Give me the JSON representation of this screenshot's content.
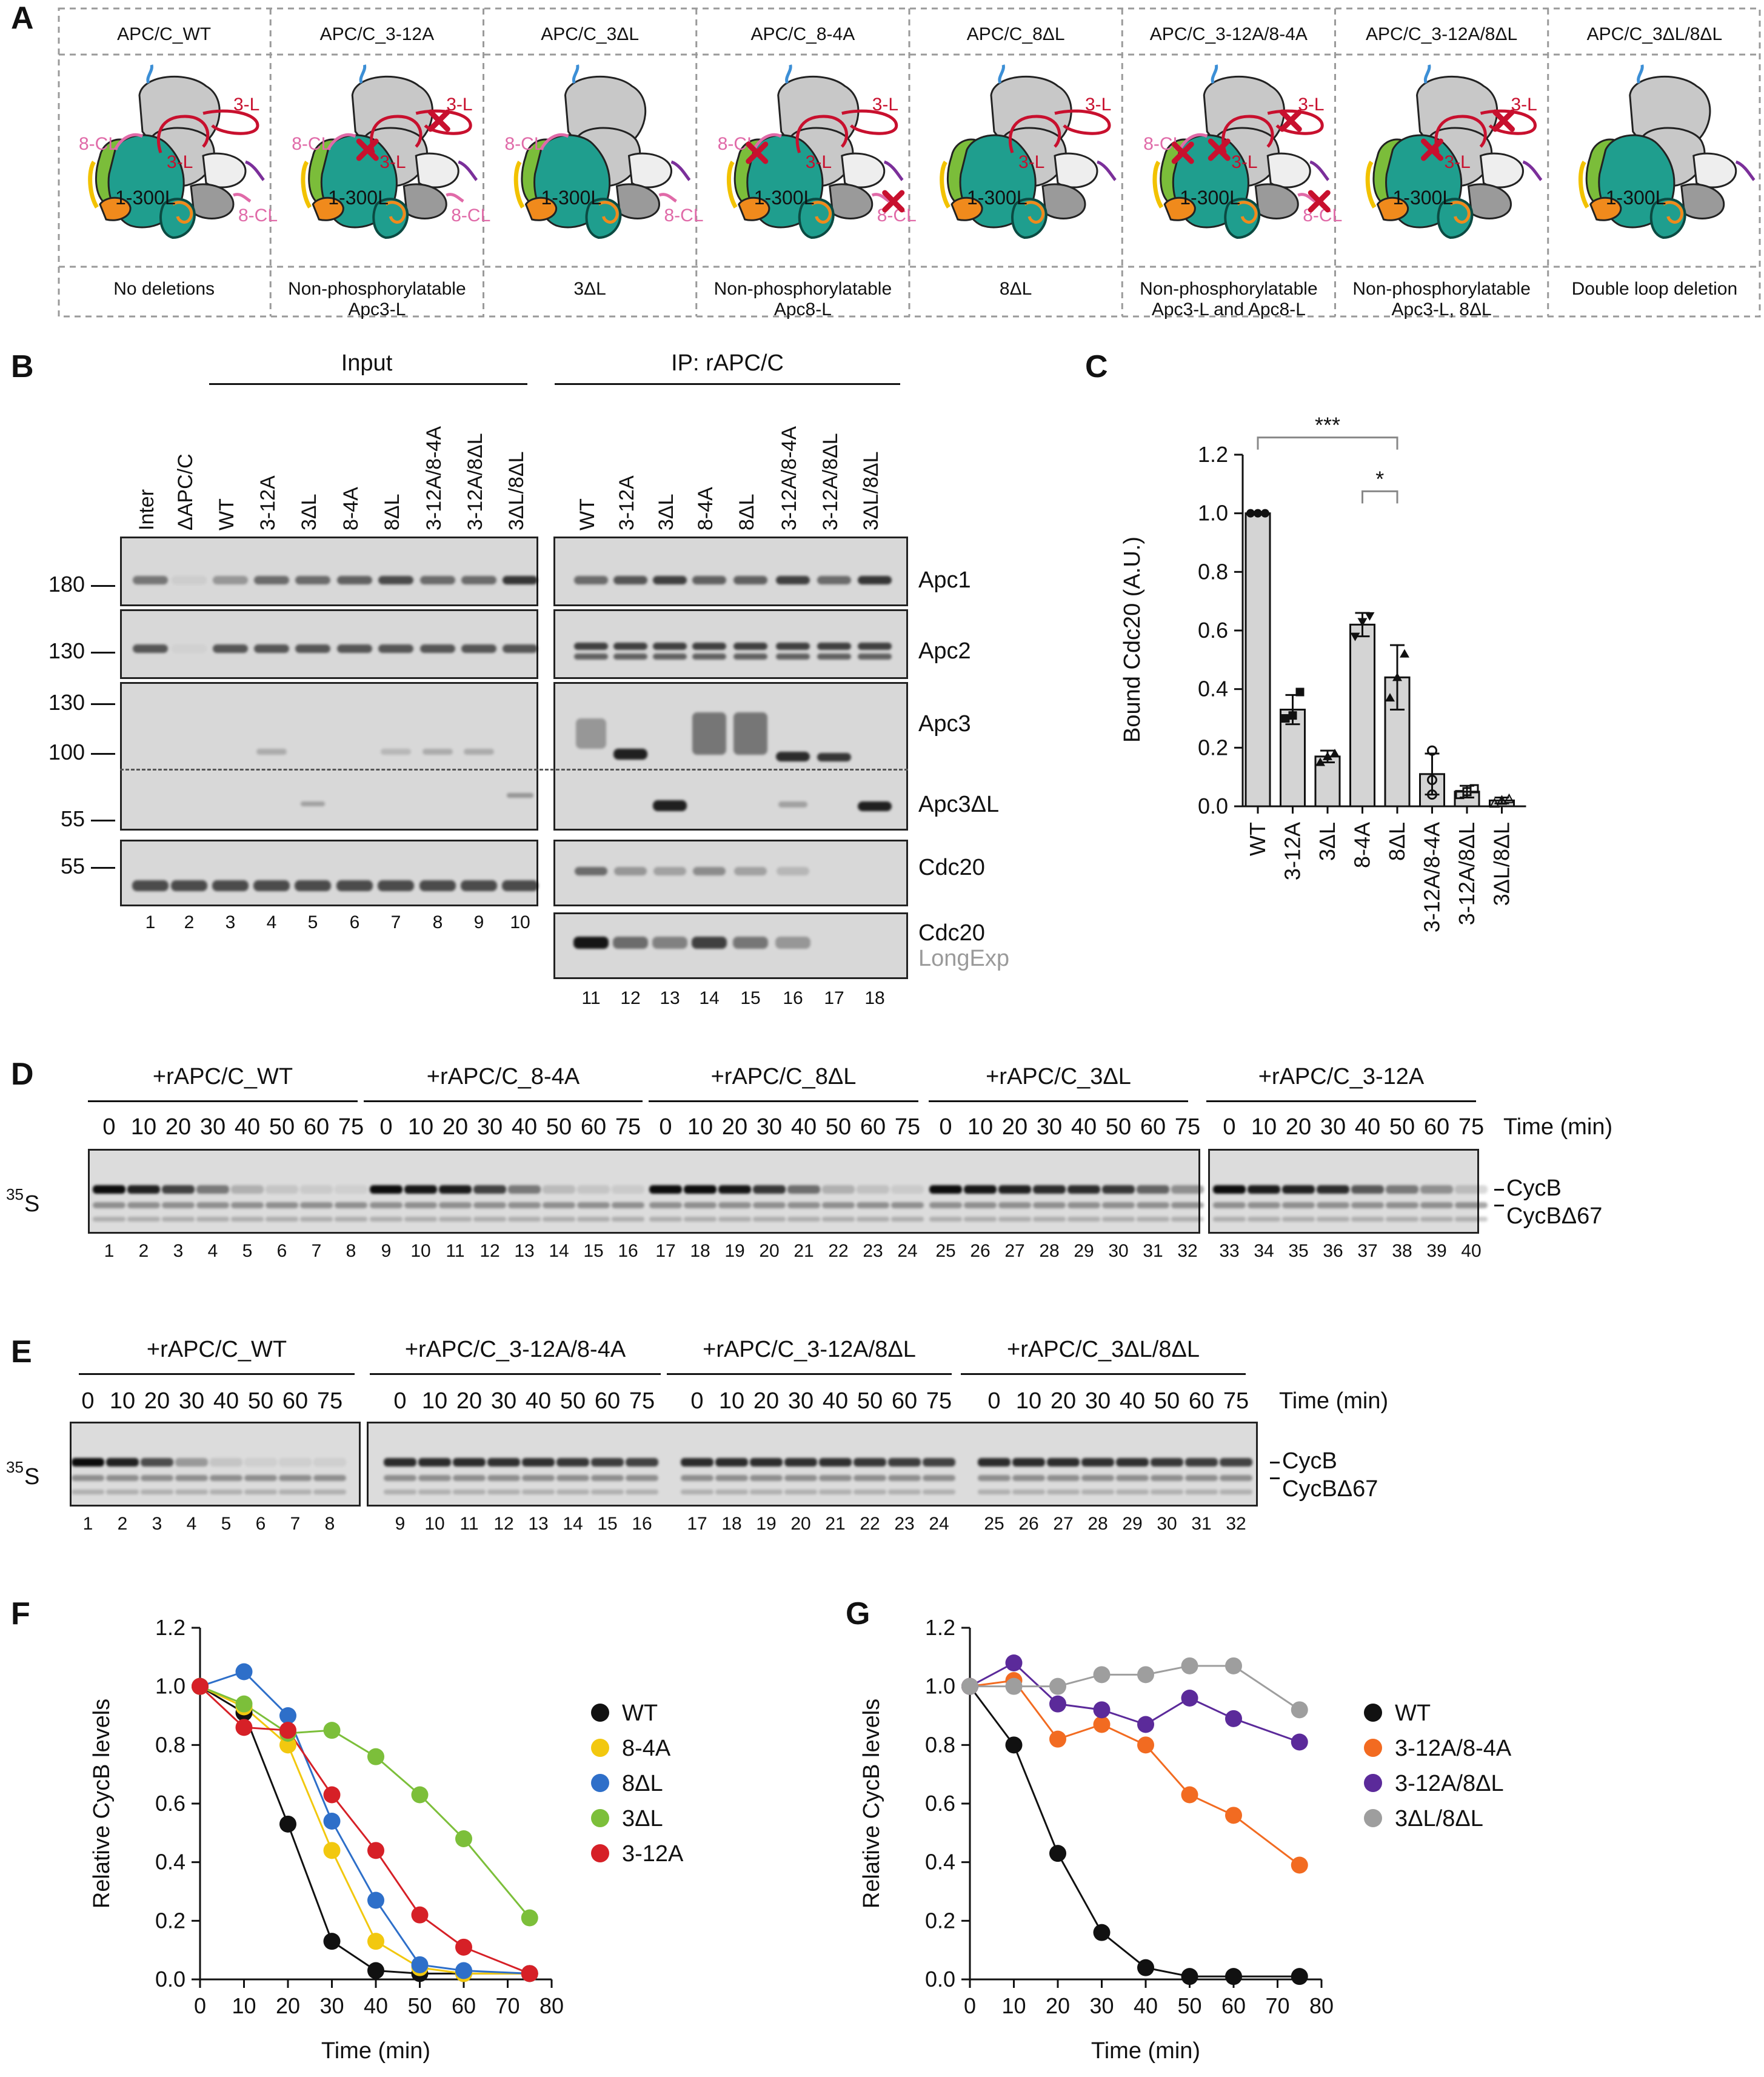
{
  "panels": {
    "A": "A",
    "B": "B",
    "C": "C",
    "D": "D",
    "E": "E",
    "F": "F",
    "G": "G"
  },
  "panel_a": {
    "constructs": [
      "APC/C_WT",
      "APC/C_3-12A",
      "APC/C_3ΔL",
      "APC/C_8-4A",
      "APC/C_8ΔL",
      "APC/C_3-12A/8-4A",
      "APC/C_3-12A/8ΔL",
      "APC/C_3ΔL/8ΔL"
    ],
    "descriptions": [
      [
        "No deletions",
        ""
      ],
      [
        "Non-phosphorylatable",
        "Apc3-L"
      ],
      [
        "3ΔL",
        ""
      ],
      [
        "Non-phosphorylatable",
        "Apc8-L"
      ],
      [
        "8ΔL",
        ""
      ],
      [
        "Non-phosphorylatable",
        "Apc3-L and Apc8-L"
      ],
      [
        "Non-phosphorylatable",
        "Apc3-L, 8ΔL"
      ],
      [
        "Double loop deletion",
        ""
      ]
    ],
    "labels": {
      "apc3_loop": "3-L",
      "apc8_loop": "8-CL",
      "apc1_loop": "1-300L"
    },
    "colors": {
      "cdc20_teal": "#1f9e8e",
      "apc8_pink": "#e06aa8",
      "apc3_red": "#c8102e",
      "green": "#7bbd3a",
      "orange": "#f08a1c",
      "yellow": "#f2c200",
      "blue": "#3c8fd6",
      "purple": "#7b2f9a",
      "grey": "#c8c8c8"
    }
  },
  "panel_b": {
    "input_header": "Input",
    "ip_header": "IP: rAPC/C",
    "input_lanes": [
      "Inter",
      "ΔAPC/C",
      "WT",
      "3-12A",
      "3ΔL",
      "8-4A",
      "8ΔL",
      "3-12A/8-4A",
      "3-12A/8ΔL",
      "3ΔL/8ΔL"
    ],
    "ip_lanes": [
      "WT",
      "3-12A",
      "3ΔL",
      "8-4A",
      "8ΔL",
      "3-12A/8-4A",
      "3-12A/8ΔL",
      "3ΔL/8ΔL"
    ],
    "markers": [
      "180",
      "130",
      "130",
      "100",
      "55",
      "55"
    ],
    "proteins": [
      "Apc1",
      "Apc2",
      "Apc3",
      "Apc3ΔL",
      "Cdc20",
      "Cdc20"
    ],
    "longexp": "LongExp",
    "lane_numbers": [
      "1",
      "2",
      "3",
      "4",
      "5",
      "6",
      "7",
      "8",
      "9",
      "10",
      "11",
      "12",
      "13",
      "14",
      "15",
      "16",
      "17",
      "18"
    ]
  },
  "panel_c": {
    "chart_data": {
      "type": "bar",
      "categories": [
        "WT",
        "3-12A",
        "3ΔL",
        "8-4A",
        "8ΔL",
        "3-12A/8-4A",
        "3-12A/8ΔL",
        "3ΔL/8ΔL"
      ],
      "values": [
        1.0,
        0.33,
        0.17,
        0.62,
        0.44,
        0.11,
        0.05,
        0.02
      ],
      "errors": [
        0.0,
        0.05,
        0.02,
        0.04,
        0.11,
        0.07,
        0.02,
        0.01
      ],
      "points": [
        [
          1.0,
          1.0,
          1.0
        ],
        [
          0.3,
          0.31,
          0.39
        ],
        [
          0.15,
          0.17,
          0.18
        ],
        [
          0.58,
          0.63,
          0.65
        ],
        [
          0.37,
          0.44,
          0.52
        ],
        [
          0.04,
          0.09,
          0.19
        ],
        [
          0.04,
          0.05,
          0.06
        ],
        [
          0.01,
          0.02,
          0.025
        ]
      ],
      "ylabel": "Bound Cdc20 (A.U.)",
      "ylim": [
        0,
        1.2
      ],
      "yticks": [
        "0.0",
        "0.2",
        "0.4",
        "0.6",
        "0.8",
        "1.0",
        "1.2"
      ],
      "significance": [
        {
          "from": "WT",
          "to": "8ΔL",
          "label": "***"
        },
        {
          "from": "8-4A",
          "to": "8ΔL",
          "label": "*"
        }
      ]
    }
  },
  "panel_d": {
    "groups": [
      "+rAPC/C_WT",
      "+rAPC/C_8-4A",
      "+rAPC/C_8ΔL",
      "+rAPC/C_3ΔL",
      "+rAPC/C_3-12A"
    ],
    "times": [
      "0",
      "10",
      "20",
      "30",
      "40",
      "50",
      "60",
      "75"
    ],
    "time_label": "Time (min)",
    "isotope": "35",
    "isotope_letter": "S",
    "bands": [
      "CycB",
      "CycBΔ67"
    ],
    "lane_numbers": [
      "1",
      "2",
      "3",
      "4",
      "5",
      "6",
      "7",
      "8",
      "9",
      "10",
      "11",
      "12",
      "13",
      "14",
      "15",
      "16",
      "17",
      "18",
      "19",
      "20",
      "21",
      "22",
      "23",
      "24",
      "25",
      "26",
      "27",
      "28",
      "29",
      "30",
      "31",
      "32",
      "33",
      "34",
      "35",
      "36",
      "37",
      "38",
      "39",
      "40"
    ]
  },
  "panel_e": {
    "groups": [
      "+rAPC/C_WT",
      "+rAPC/C_3-12A/8-4A",
      "+rAPC/C_3-12A/8ΔL",
      "+rAPC/C_3ΔL/8ΔL"
    ],
    "times": [
      "0",
      "10",
      "20",
      "30",
      "40",
      "50",
      "60",
      "75"
    ],
    "time_label": "Time (min)",
    "isotope": "35",
    "isotope_letter": "S",
    "bands": [
      "CycB",
      "CycBΔ67"
    ],
    "lane_numbers": [
      "1",
      "2",
      "3",
      "4",
      "5",
      "6",
      "7",
      "8",
      "9",
      "10",
      "11",
      "12",
      "13",
      "14",
      "15",
      "16",
      "17",
      "18",
      "19",
      "20",
      "21",
      "22",
      "23",
      "24",
      "25",
      "26",
      "27",
      "28",
      "29",
      "30",
      "31",
      "32"
    ]
  },
  "panel_f": {
    "chart_data": {
      "type": "line",
      "x": [
        0,
        10,
        20,
        30,
        40,
        50,
        60,
        75
      ],
      "xlabel": "Time (min)",
      "ylabel": "Relative CycB levels",
      "xlim": [
        0,
        80
      ],
      "ylim": [
        0,
        1.2
      ],
      "xticks": [
        "0",
        "10",
        "20",
        "30",
        "40",
        "50",
        "60",
        "70",
        "80"
      ],
      "yticks": [
        "0.0",
        "0.2",
        "0.4",
        "0.6",
        "0.8",
        "1.0",
        "1.2"
      ],
      "legend_position": "right",
      "series": [
        {
          "name": "WT",
          "color": "#111111",
          "values": [
            1.0,
            0.91,
            0.53,
            0.13,
            0.03,
            0.02,
            0.02,
            0.02
          ]
        },
        {
          "name": "8-4A",
          "color": "#f2c80f",
          "values": [
            1.0,
            0.93,
            0.8,
            0.44,
            0.13,
            0.04,
            0.02,
            0.02
          ]
        },
        {
          "name": "8ΔL",
          "color": "#2e6fc9",
          "values": [
            1.0,
            1.05,
            0.9,
            0.54,
            0.27,
            0.05,
            0.03,
            0.02
          ]
        },
        {
          "name": "3ΔL",
          "color": "#7cbf3a",
          "values": [
            1.0,
            0.94,
            0.84,
            0.85,
            0.76,
            0.63,
            0.48,
            0.21
          ]
        },
        {
          "name": "3-12A",
          "color": "#d62027",
          "values": [
            1.0,
            0.86,
            0.85,
            0.63,
            0.44,
            0.22,
            0.11,
            0.02
          ]
        }
      ]
    }
  },
  "panel_g": {
    "chart_data": {
      "type": "line",
      "x": [
        0,
        10,
        20,
        30,
        40,
        50,
        60,
        75
      ],
      "xlabel": "Time (min)",
      "ylabel": "Relative CycB levels",
      "xlim": [
        0,
        80
      ],
      "ylim": [
        0,
        1.2
      ],
      "xticks": [
        "0",
        "10",
        "20",
        "30",
        "40",
        "50",
        "60",
        "70",
        "80"
      ],
      "yticks": [
        "0.0",
        "0.2",
        "0.4",
        "0.6",
        "0.8",
        "1.0",
        "1.2"
      ],
      "legend_position": "right",
      "series": [
        {
          "name": "WT",
          "color": "#111111",
          "values": [
            1.0,
            0.8,
            0.43,
            0.16,
            0.04,
            0.01,
            0.01,
            0.01
          ]
        },
        {
          "name": "3-12A/8-4A",
          "color": "#f26b21",
          "values": [
            1.0,
            1.02,
            0.82,
            0.87,
            0.8,
            0.63,
            0.56,
            0.39
          ]
        },
        {
          "name": "3-12A/8ΔL",
          "color": "#5b2a9a",
          "values": [
            1.0,
            1.08,
            0.94,
            0.92,
            0.87,
            0.96,
            0.89,
            0.81
          ]
        },
        {
          "name": "3ΔL/8ΔL",
          "color": "#9e9e9e",
          "values": [
            1.0,
            1.0,
            1.0,
            1.04,
            1.04,
            1.07,
            1.07,
            0.92
          ]
        }
      ]
    }
  }
}
